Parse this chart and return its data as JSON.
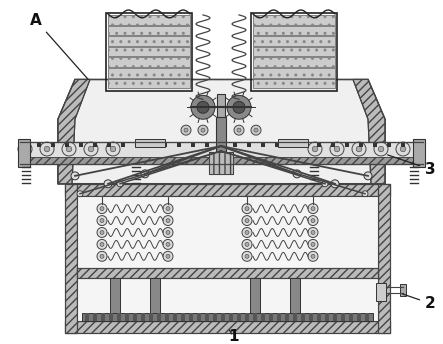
{
  "fig_width": 4.43,
  "fig_height": 3.44,
  "dpi": 100,
  "bg_color": "#ffffff",
  "lc": "#444444",
  "lc2": "#222222",
  "wall_fc": "#cccccc",
  "inner_fc": "#f2f2f2",
  "label_A": "A",
  "label_1": "1",
  "label_2": "2",
  "label_3": "3"
}
